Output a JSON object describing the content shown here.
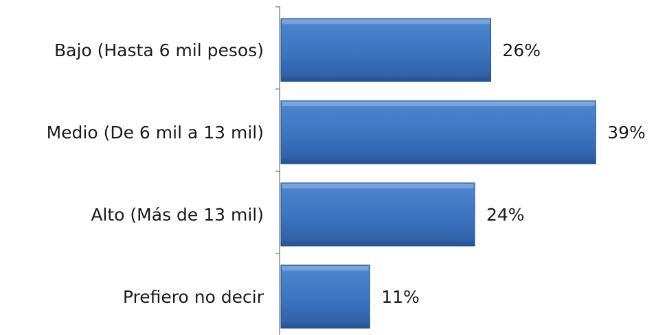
{
  "chart_data": {
    "type": "bar",
    "orientation": "horizontal",
    "categories": [
      "Bajo (Hasta 6 mil pesos)",
      "Medio (De 6 mil a 13 mil)",
      "Alto (Más de 13 mil)",
      "Prefiero no decir"
    ],
    "values": [
      26,
      39,
      24,
      11
    ],
    "data_labels": [
      "26%",
      "39%",
      "24%",
      "11%"
    ],
    "unit": "%",
    "xlim": [
      0,
      40
    ],
    "grid": false,
    "legend": "none",
    "bar_color": "#3f78c4"
  }
}
